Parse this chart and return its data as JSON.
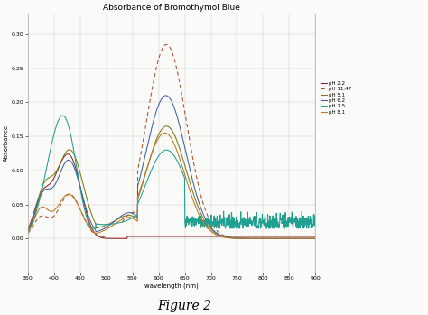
{
  "title": "Absorbance of Bromothymol Blue",
  "xlabel": "wavelength (nm)",
  "ylabel": "Absorbance",
  "figure_caption": "Figure 2",
  "x_range": [
    350,
    900
  ],
  "y_range": [
    -0.05,
    0.33
  ],
  "yticks": [
    0,
    0.05,
    0.1,
    0.15,
    0.2,
    0.25,
    0.3
  ],
  "xticks": [
    350,
    400,
    450,
    500,
    550,
    600,
    650,
    700,
    750,
    800,
    850,
    900
  ],
  "legend_labels": [
    "pH 2.2",
    "pH 11.47",
    "pH 5.1",
    "pH 6.2",
    "pH 7.5",
    "pH 8.1"
  ],
  "colors": {
    "ph22": "#8B2020",
    "ph1147": "#A05030",
    "ph51": "#7A7A20",
    "ph62": "#4060A0",
    "ph75": "#20A090",
    "ph81": "#C07820"
  },
  "background_color": "#FAFAF8",
  "grid_color": "#CCCCCC"
}
